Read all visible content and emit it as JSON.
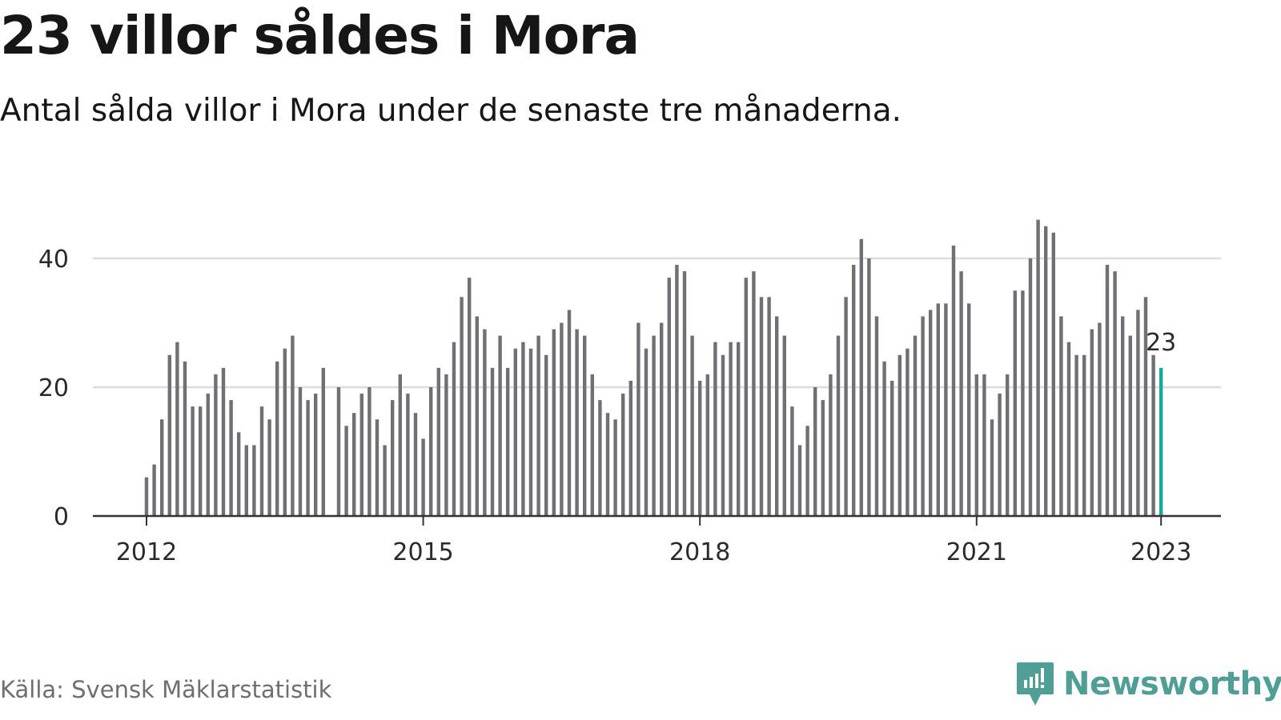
{
  "title": "23 villor såldes i Mora",
  "subtitle": "Antal sålda villor i Mora under de senaste tre månaderna.",
  "source": "Källa: Svensk Mäklarstatistik",
  "brand": {
    "name": "Newsworthy",
    "icon": "newsworthy-logo-icon",
    "color": "#4f9f97"
  },
  "chart_data": {
    "type": "bar",
    "ylim": [
      0,
      45
    ],
    "y_ticks": [
      "0",
      "20",
      "40"
    ],
    "x_ticks": [
      "2012",
      "2015",
      "2018",
      "2021",
      "2023"
    ],
    "grid": true,
    "highlight_label": "23",
    "colors": {
      "bar": "#6f6f74",
      "highlight": "#1aa79c",
      "grid": "#dddddd",
      "axis": "#333333"
    },
    "series": [
      {
        "values": [
          6,
          8,
          15,
          25,
          27,
          24,
          17,
          17,
          19,
          22,
          23,
          18,
          13,
          11,
          11,
          17,
          15,
          24,
          26,
          28,
          20,
          18,
          19,
          23,
          null,
          20,
          14,
          16,
          19,
          20,
          15,
          11,
          18,
          22,
          19,
          16,
          12,
          20,
          23,
          22,
          27,
          34,
          37,
          31,
          29,
          23,
          28,
          23,
          26,
          27,
          26,
          28,
          25,
          29,
          30,
          32,
          29,
          28,
          22,
          18,
          16,
          15,
          19,
          21,
          30,
          26,
          28,
          30,
          37,
          39,
          38,
          28,
          21,
          22,
          27,
          25,
          27,
          27,
          37,
          38,
          34,
          34,
          31,
          28,
          17,
          11,
          14,
          20,
          18,
          22,
          28,
          34,
          39,
          43,
          40,
          31,
          24,
          21,
          25,
          26,
          28,
          31,
          32,
          33,
          33,
          42,
          38,
          33,
          22,
          22,
          15,
          19,
          22,
          35,
          35,
          40,
          46,
          45,
          44,
          31,
          27,
          25,
          25,
          29,
          30,
          39,
          38,
          31,
          28,
          32,
          34,
          25,
          23
        ]
      }
    ]
  }
}
